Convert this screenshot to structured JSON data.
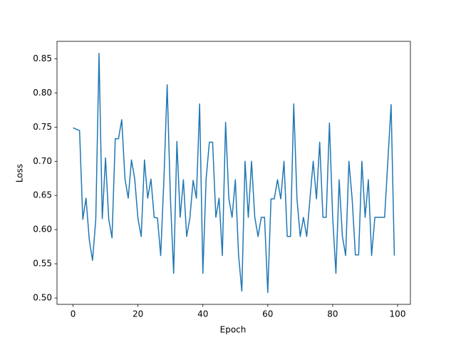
{
  "chart_data": {
    "type": "line",
    "xlabel": "Epoch",
    "ylabel": "Loss",
    "x": [
      0,
      1,
      2,
      3,
      4,
      5,
      6,
      7,
      8,
      9,
      10,
      11,
      12,
      13,
      14,
      15,
      16,
      17,
      18,
      19,
      20,
      21,
      22,
      23,
      24,
      25,
      26,
      27,
      28,
      29,
      30,
      31,
      32,
      33,
      34,
      35,
      36,
      37,
      38,
      39,
      40,
      41,
      42,
      43,
      44,
      45,
      46,
      47,
      48,
      49,
      50,
      51,
      52,
      53,
      54,
      55,
      56,
      57,
      58,
      59,
      60,
      61,
      62,
      63,
      64,
      65,
      66,
      67,
      68,
      69,
      70,
      71,
      72,
      73,
      74,
      75,
      76,
      77,
      78,
      79,
      80,
      81,
      82,
      83,
      84,
      85,
      86,
      87,
      88,
      89,
      90,
      91,
      92,
      93,
      94,
      95,
      96,
      97,
      98,
      99
    ],
    "series": [
      {
        "color": "#1f77b4",
        "values": [
          0.749,
          0.747,
          0.745,
          0.615,
          0.646,
          0.585,
          0.555,
          0.615,
          0.858,
          0.616,
          0.705,
          0.615,
          0.588,
          0.733,
          0.733,
          0.761,
          0.674,
          0.646,
          0.702,
          0.674,
          0.616,
          0.59,
          0.702,
          0.646,
          0.674,
          0.618,
          0.617,
          0.562,
          0.674,
          0.812,
          0.646,
          0.536,
          0.729,
          0.618,
          0.673,
          0.59,
          0.617,
          0.672,
          0.646,
          0.784,
          0.536,
          0.674,
          0.728,
          0.728,
          0.618,
          0.646,
          0.562,
          0.757,
          0.646,
          0.618,
          0.673,
          0.563,
          0.51,
          0.7,
          0.618,
          0.7,
          0.618,
          0.59,
          0.618,
          0.618,
          0.508,
          0.645,
          0.645,
          0.673,
          0.645,
          0.7,
          0.59,
          0.59,
          0.784,
          0.645,
          0.59,
          0.618,
          0.59,
          0.645,
          0.7,
          0.645,
          0.728,
          0.618,
          0.618,
          0.756,
          0.618,
          0.536,
          0.673,
          0.59,
          0.562,
          0.7,
          0.645,
          0.563,
          0.563,
          0.7,
          0.618,
          0.673,
          0.562,
          0.618,
          0.618,
          0.618,
          0.618,
          0.7,
          0.783,
          0.562
        ]
      }
    ],
    "xlim": [
      -4.95,
      103.95
    ],
    "xticks": [
      0,
      20,
      40,
      60,
      80,
      100
    ],
    "ylim": [
      0.4906,
      0.8756
    ],
    "yticks": [
      {
        "value": 0.5,
        "label": "0.50"
      },
      {
        "value": 0.55,
        "label": "0.55"
      },
      {
        "value": 0.6,
        "label": "0.60"
      },
      {
        "value": 0.65,
        "label": "0.65"
      },
      {
        "value": 0.7,
        "label": "0.70"
      },
      {
        "value": 0.75,
        "label": "0.75"
      },
      {
        "value": 0.8,
        "label": "0.80"
      },
      {
        "value": 0.85,
        "label": "0.85"
      }
    ]
  }
}
